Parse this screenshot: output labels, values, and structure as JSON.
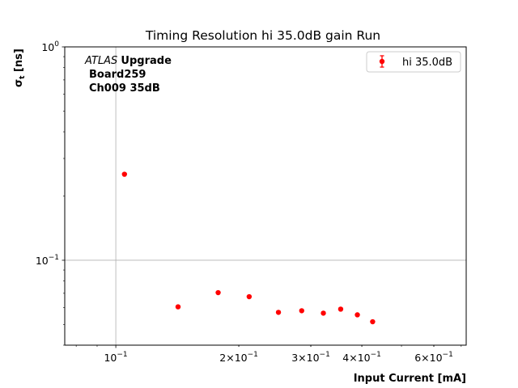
{
  "chart_data": {
    "type": "scatter",
    "title": "Timing Resolution hi 35.0dB gain Run",
    "xlabel": "Input Current [mA]",
    "ylabel_main": "σ",
    "ylabel_sub": "t",
    "ylabel_unit": "[ns]",
    "x_scale": "log",
    "y_scale": "log",
    "xlim": [
      0.075,
      0.72
    ],
    "ylim": [
      0.04,
      1.0
    ],
    "grid": true,
    "legend_position": "top-right",
    "annotation": {
      "experiment": "ATLAS",
      "tag": "Upgrade",
      "board": "Board259",
      "channel": "Ch009 35dB"
    },
    "x_ticks": [
      {
        "value": 0.1,
        "base": "10",
        "exp": "−1",
        "prefix": ""
      },
      {
        "value": 0.2,
        "base": "10",
        "exp": "−1",
        "prefix": "2×"
      },
      {
        "value": 0.3,
        "base": "10",
        "exp": "−1",
        "prefix": "3×"
      },
      {
        "value": 0.4,
        "base": "10",
        "exp": "−1",
        "prefix": "4×"
      },
      {
        "value": 0.6,
        "base": "10",
        "exp": "−1",
        "prefix": "6×"
      }
    ],
    "y_ticks": [
      {
        "value": 0.1,
        "base": "10",
        "exp": "−1"
      },
      {
        "value": 1.0,
        "base": "10",
        "exp": "0"
      }
    ],
    "series": [
      {
        "name": "hi 35.0dB",
        "color": "#ff0000",
        "x": [
          0.105,
          0.142,
          0.178,
          0.212,
          0.25,
          0.285,
          0.322,
          0.355,
          0.39,
          0.425
        ],
        "y": [
          0.253,
          0.0605,
          0.0705,
          0.0675,
          0.057,
          0.058,
          0.0565,
          0.059,
          0.0555,
          0.0515
        ]
      }
    ]
  }
}
